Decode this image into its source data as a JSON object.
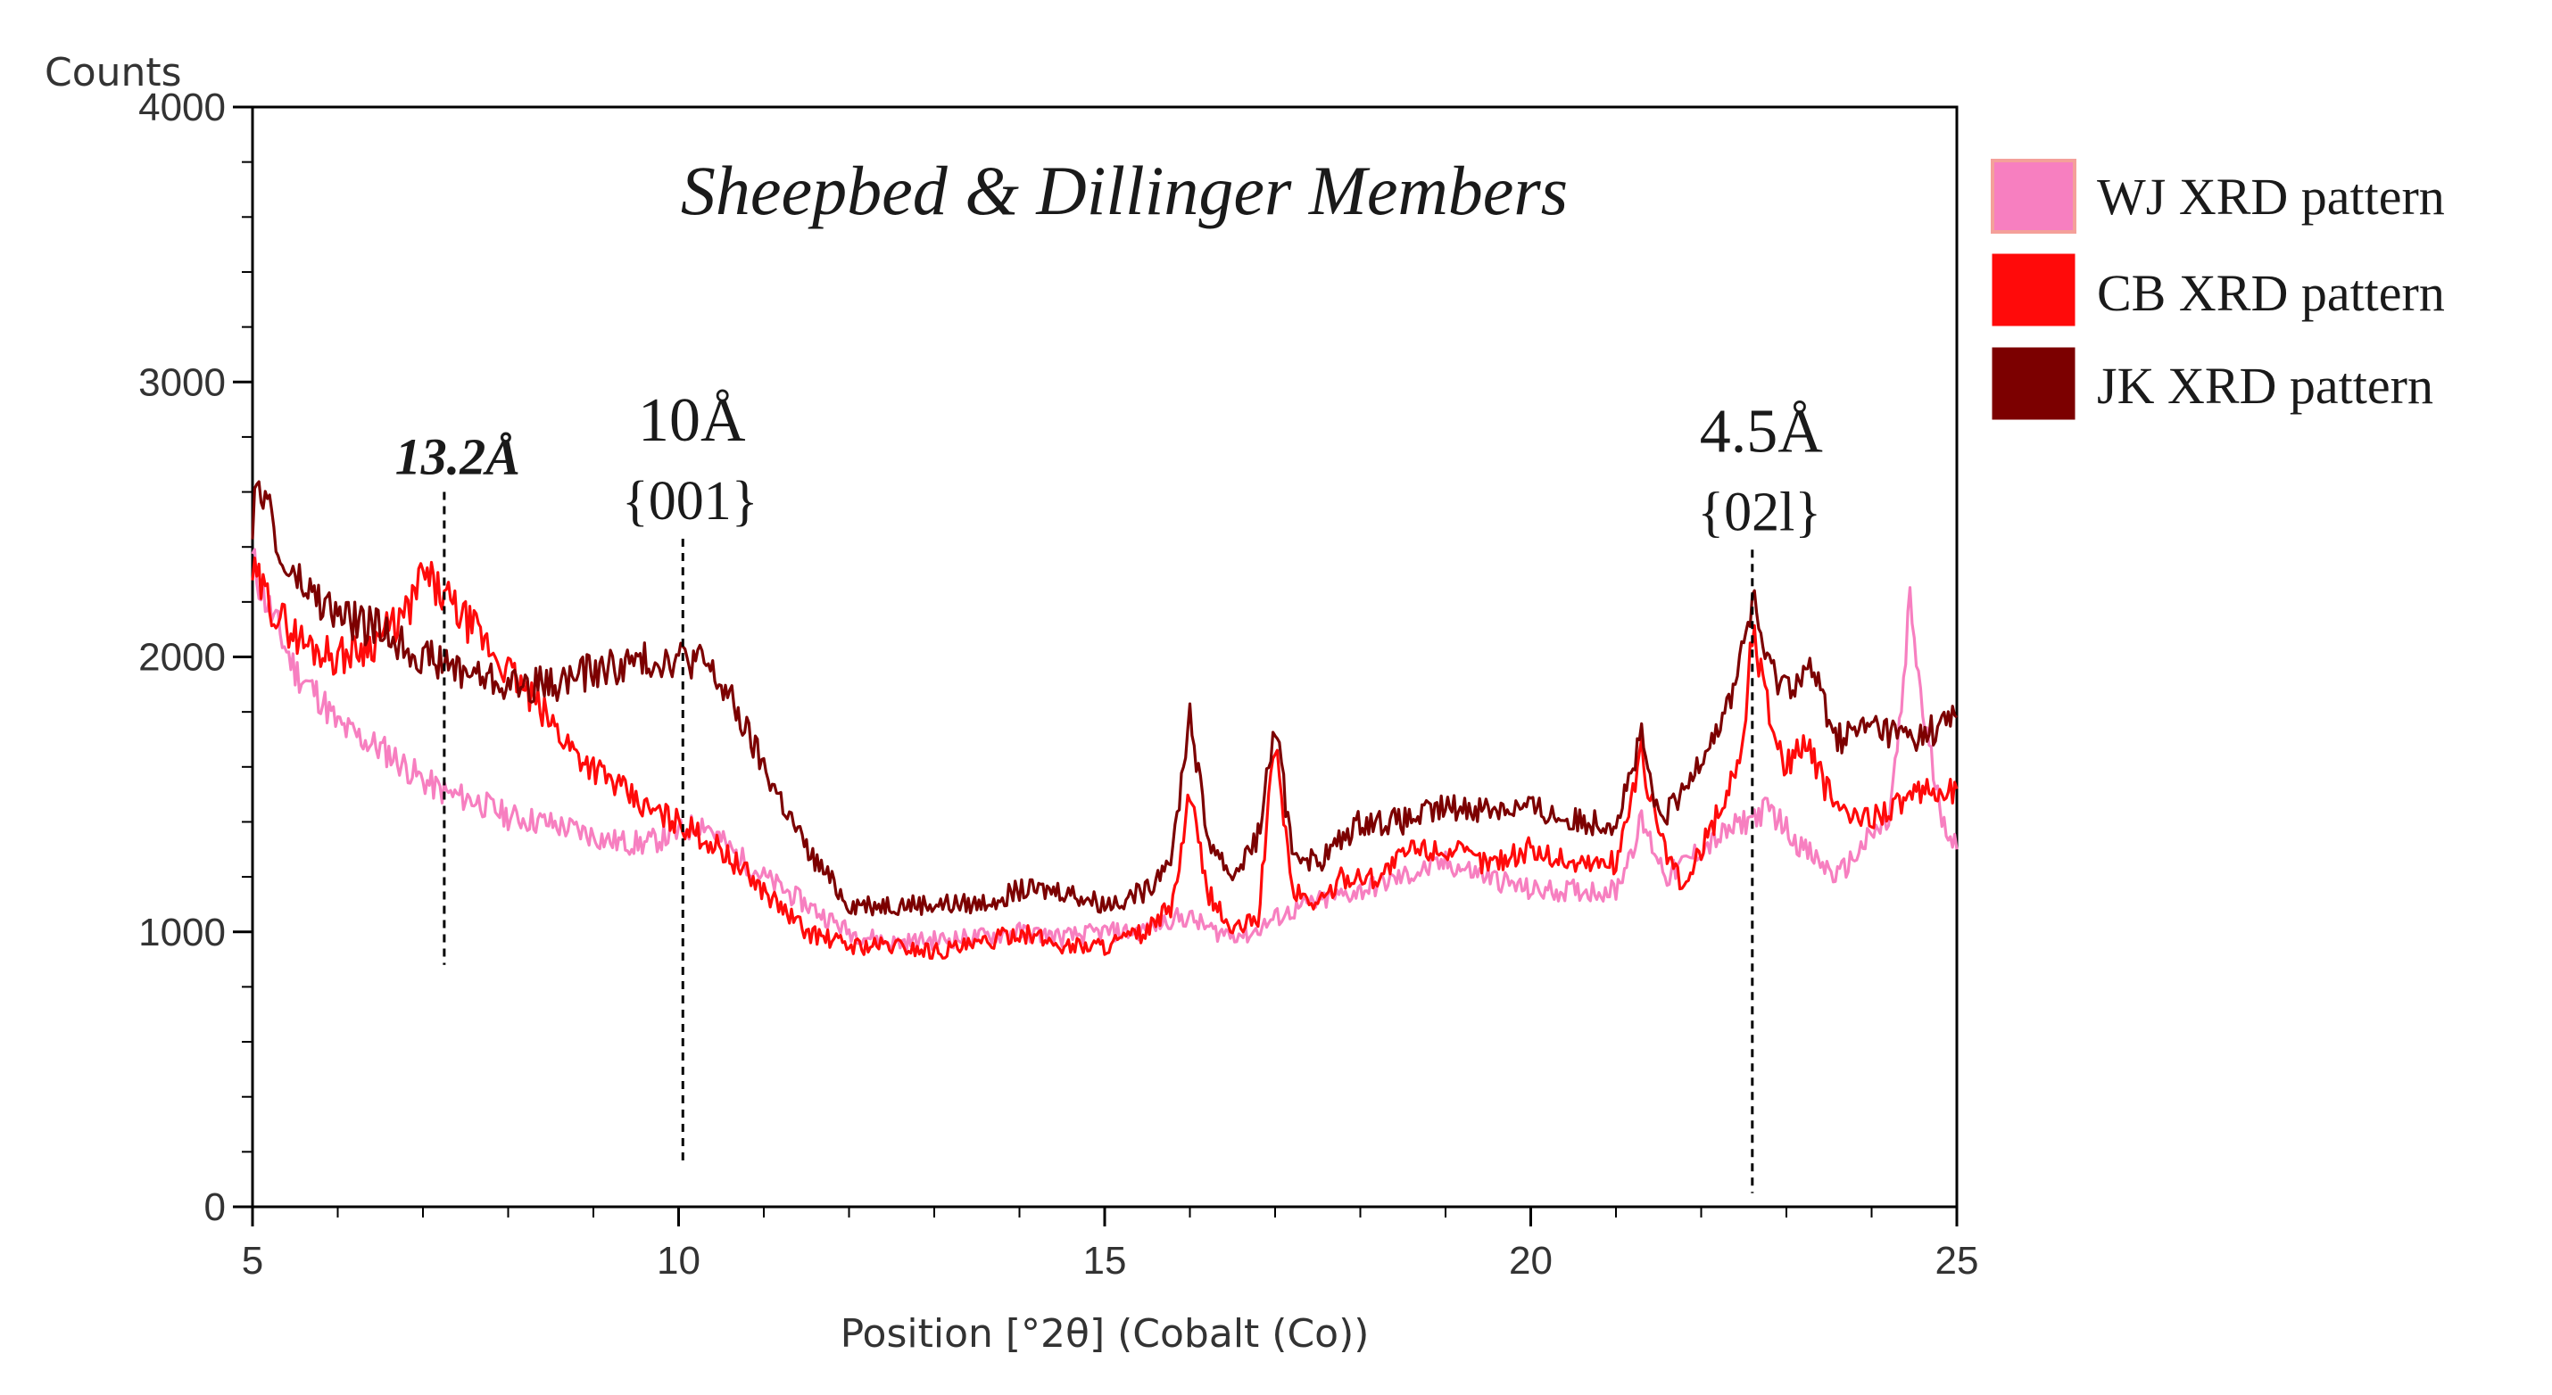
{
  "chart_data": {
    "type": "line",
    "title": "Sheepbed & Dillinger Members",
    "xlabel": "Position [°2θ] (Cobalt (Co))",
    "ylabel": "Counts",
    "xlim": [
      5,
      25
    ],
    "ylim": [
      0,
      4000
    ],
    "x_ticks": [
      5,
      10,
      15,
      20,
      25
    ],
    "y_ticks": [
      0,
      1000,
      2000,
      3000,
      4000
    ],
    "x_tick_labels": [
      "5",
      "10",
      "15",
      "20",
      "25"
    ],
    "y_tick_labels": [
      "0",
      "1000",
      "2000",
      "3000",
      "4000"
    ],
    "legend_position": "outside-right",
    "series": [
      {
        "name": "WJ XRD pattern",
        "color": "#f77fc0",
        "x": [
          5.0,
          5.1,
          5.3,
          5.5,
          5.8,
          6.0,
          6.3,
          6.6,
          7.0,
          7.3,
          7.6,
          8.0,
          8.4,
          8.8,
          9.2,
          9.6,
          10.0,
          10.3,
          10.6,
          11.0,
          11.5,
          12.0,
          12.5,
          13.0,
          13.5,
          14.0,
          14.5,
          15.0,
          15.4,
          15.8,
          16.0,
          16.3,
          16.7,
          17.0,
          17.4,
          18.0,
          18.5,
          19.0,
          19.5,
          20.0,
          20.5,
          21.0,
          21.3,
          21.6,
          22.0,
          22.5,
          22.8,
          23.2,
          23.6,
          24.0,
          24.2,
          24.35,
          24.45,
          24.6,
          24.8,
          25.0
        ],
        "values": [
          2350,
          2250,
          2100,
          1950,
          1850,
          1750,
          1700,
          1650,
          1550,
          1500,
          1480,
          1420,
          1400,
          1370,
          1330,
          1320,
          1360,
          1400,
          1300,
          1200,
          1100,
          1000,
          960,
          970,
          980,
          1000,
          980,
          1000,
          1000,
          1050,
          1050,
          1000,
          990,
          1050,
          1100,
          1150,
          1200,
          1250,
          1200,
          1150,
          1150,
          1150,
          1400,
          1200,
          1300,
          1400,
          1450,
          1300,
          1200,
          1350,
          1400,
          1800,
          2200,
          1800,
          1450,
          1300
        ]
      },
      {
        "name": "CB XRD pattern",
        "color": "#ff0a0a",
        "x": [
          5.0,
          5.1,
          5.3,
          5.6,
          6.0,
          6.4,
          6.8,
          7.0,
          7.3,
          7.6,
          8.0,
          8.4,
          8.8,
          9.2,
          9.6,
          10.0,
          10.5,
          11.0,
          11.5,
          12.0,
          12.5,
          13.0,
          13.5,
          14.0,
          14.5,
          15.0,
          15.5,
          15.8,
          16.0,
          16.2,
          16.5,
          16.8,
          17.0,
          17.2,
          17.5,
          17.8,
          18.2,
          18.6,
          19.0,
          19.5,
          20.0,
          20.5,
          21.0,
          21.3,
          21.5,
          21.8,
          22.0,
          22.3,
          22.5,
          22.6,
          22.8,
          23.0,
          23.2,
          23.5,
          23.8,
          24.2,
          24.6,
          25.0
        ],
        "values": [
          2300,
          2250,
          2150,
          2050,
          2000,
          2050,
          2150,
          2300,
          2200,
          2100,
          1950,
          1800,
          1650,
          1550,
          1450,
          1400,
          1300,
          1150,
          1000,
          950,
          950,
          930,
          950,
          1000,
          950,
          950,
          1000,
          1100,
          1500,
          1150,
          1000,
          1050,
          1700,
          1150,
          1100,
          1200,
          1200,
          1300,
          1300,
          1250,
          1300,
          1250,
          1250,
          1650,
          1350,
          1150,
          1300,
          1500,
          1700,
          2100,
          1800,
          1600,
          1700,
          1500,
          1400,
          1450,
          1500,
          1520
        ]
      },
      {
        "name": "JK XRD pattern",
        "color": "#7c0000",
        "x": [
          5.0,
          5.15,
          5.3,
          5.6,
          6.0,
          6.5,
          7.0,
          7.5,
          8.0,
          8.5,
          9.0,
          9.5,
          10.0,
          10.3,
          10.6,
          11.0,
          11.5,
          12.0,
          12.5,
          13.0,
          13.5,
          14.0,
          14.5,
          15.0,
          15.5,
          15.8,
          16.0,
          16.2,
          16.5,
          16.8,
          17.0,
          17.2,
          17.5,
          18.0,
          18.5,
          19.0,
          19.5,
          20.0,
          20.5,
          21.0,
          21.3,
          21.5,
          21.8,
          22.0,
          22.3,
          22.5,
          22.6,
          22.8,
          23.0,
          23.3,
          23.6,
          24.0,
          24.5,
          25.0
        ],
        "values": [
          2500,
          2650,
          2350,
          2250,
          2150,
          2100,
          2000,
          1950,
          1900,
          1900,
          1950,
          1980,
          2000,
          1980,
          1850,
          1600,
          1300,
          1100,
          1100,
          1100,
          1100,
          1150,
          1150,
          1100,
          1150,
          1300,
          1800,
          1350,
          1200,
          1350,
          1750,
          1300,
          1250,
          1400,
          1400,
          1450,
          1450,
          1450,
          1400,
          1400,
          1700,
          1400,
          1500,
          1650,
          1800,
          2050,
          2200,
          1950,
          1900,
          1950,
          1700,
          1750,
          1700,
          1780
        ]
      }
    ],
    "annotations": [
      {
        "label": "13.2Å",
        "sublabel": "",
        "x": 7.25,
        "y_line_top": 2600,
        "y_line_bottom": 880
      },
      {
        "label": "10Å",
        "sublabel": "{001}",
        "x": 10.05,
        "y_line_top": 2430,
        "y_line_bottom": 150
      },
      {
        "label": "4.5Å",
        "sublabel": "{02l}",
        "x": 22.6,
        "y_line_top": 2390,
        "y_line_bottom": 50
      }
    ]
  }
}
